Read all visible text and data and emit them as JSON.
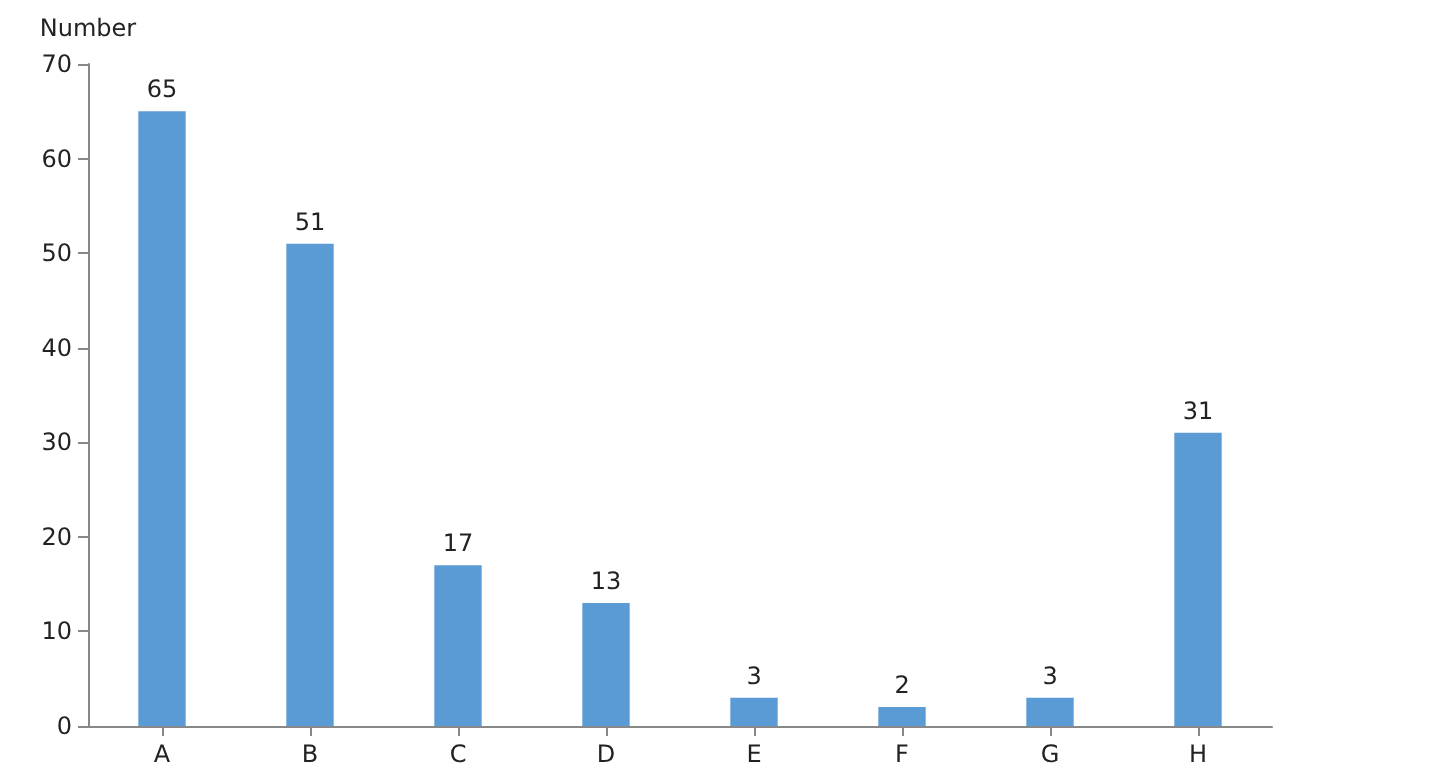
{
  "chart_data": {
    "type": "bar",
    "ylabel": "Number",
    "categories": [
      "A",
      "B",
      "C",
      "D",
      "E",
      "F",
      "G",
      "H"
    ],
    "values": [
      65,
      51,
      17,
      13,
      3,
      2,
      3,
      31
    ],
    "color": "#5b9bd5",
    "ylim": [
      0,
      70
    ],
    "yticks": [
      0,
      10,
      20,
      30,
      40,
      50,
      60,
      70
    ],
    "grid": false,
    "data_labels": true
  }
}
